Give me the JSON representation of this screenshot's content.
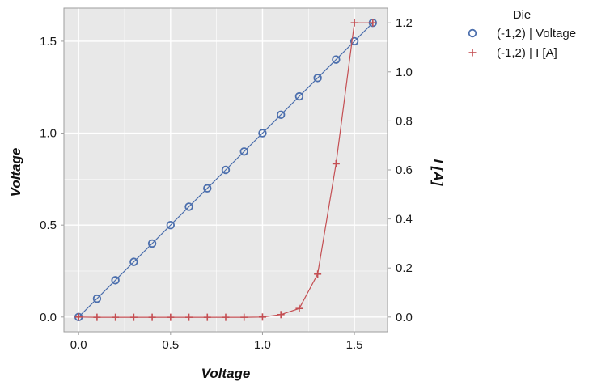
{
  "chart_data": {
    "type": "line",
    "xlabel": "Voltage",
    "ylabel_left": "Voltage",
    "ylabel_right": "I [A]",
    "xlim": [
      -0.08,
      1.68
    ],
    "ylim_left": [
      -0.08,
      1.68
    ],
    "ylim_right": [
      -0.06,
      1.26
    ],
    "x_ticks": [
      0.0,
      0.5,
      1.0,
      1.5
    ],
    "x_tick_labels": [
      "0.0",
      "0.5",
      "1.0",
      "1.5"
    ],
    "y_left_ticks": [
      0.0,
      0.5,
      1.0,
      1.5
    ],
    "y_left_tick_labels": [
      "0.0",
      "0.5",
      "1.0",
      "1.5"
    ],
    "y_right_ticks": [
      0.0,
      0.2,
      0.4,
      0.6,
      0.8,
      1.0,
      1.2
    ],
    "y_right_tick_labels": [
      "0.0",
      "0.2",
      "0.4",
      "0.6",
      "0.8",
      "1.0",
      "1.2"
    ],
    "grid": true,
    "legend": {
      "title": "Die",
      "placement": "outside-top-right",
      "entries": [
        "(-1,2) | Voltage",
        "(-1,2) | I [A]"
      ]
    },
    "series": [
      {
        "name": "(-1,2) | Voltage",
        "axis": "left",
        "marker": "circle",
        "color": "#4c6fad",
        "x": [
          0.0,
          0.1,
          0.2,
          0.3,
          0.4,
          0.5,
          0.6,
          0.7,
          0.8,
          0.9,
          1.0,
          1.1,
          1.2,
          1.3,
          1.4,
          1.5,
          1.6
        ],
        "y": [
          0.0,
          0.1,
          0.2,
          0.3,
          0.4,
          0.5,
          0.6,
          0.7,
          0.8,
          0.9,
          1.0,
          1.1,
          1.2,
          1.3,
          1.4,
          1.5,
          1.6
        ]
      },
      {
        "name": "(-1,2) | I [A]",
        "axis": "right",
        "marker": "plus",
        "color": "#c44e52",
        "x": [
          0.0,
          0.1,
          0.2,
          0.3,
          0.4,
          0.5,
          0.6,
          0.7,
          0.8,
          0.9,
          1.0,
          1.1,
          1.2,
          1.3,
          1.4,
          1.5,
          1.6
        ],
        "y": [
          0.0,
          -0.001,
          -0.001,
          -0.001,
          -0.001,
          -0.001,
          -0.001,
          -0.001,
          -0.001,
          -0.001,
          0.0,
          0.01,
          0.035,
          0.175,
          0.625,
          1.2,
          1.2
        ]
      }
    ]
  },
  "colors": {
    "plot_background": "#e8e8e8",
    "grid": "#ffffff",
    "axis_frame": "#9e9e9e"
  }
}
